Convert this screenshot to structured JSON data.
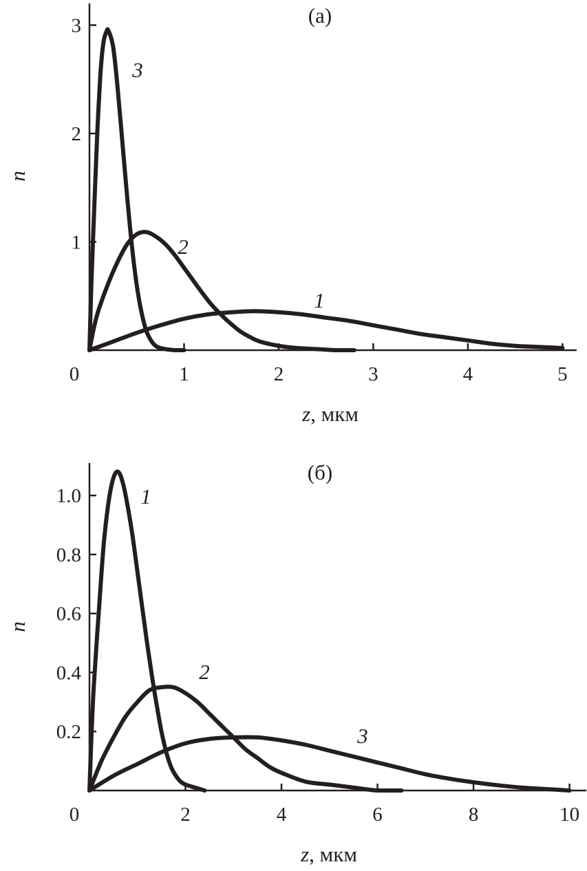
{
  "chart_data": [
    {
      "type": "line",
      "panel_label": "(a)",
      "xlabel_var": "z",
      "xlabel_unit": ", мкм",
      "ylabel": "n",
      "xlim": [
        0,
        5.15
      ],
      "ylim": [
        0,
        3.2
      ],
      "x_ticks": [
        0,
        1,
        2,
        3,
        4,
        5
      ],
      "x_tick_labels": [
        "0",
        "1",
        "2",
        "3",
        "4",
        "5"
      ],
      "y_ticks": [
        1,
        2,
        3
      ],
      "y_tick_labels": [
        "1",
        "2",
        "3"
      ],
      "grid": false,
      "series": [
        {
          "name": "1",
          "x": [
            0,
            0.25,
            0.5,
            0.75,
            1.0,
            1.25,
            1.5,
            1.75,
            2.0,
            2.25,
            2.5,
            2.75,
            3.0,
            3.25,
            3.5,
            3.75,
            4.0,
            4.25,
            4.5,
            4.75,
            5.0
          ],
          "values": [
            0.0,
            0.08,
            0.16,
            0.23,
            0.29,
            0.33,
            0.35,
            0.36,
            0.35,
            0.33,
            0.3,
            0.27,
            0.23,
            0.19,
            0.15,
            0.12,
            0.09,
            0.06,
            0.04,
            0.03,
            0.02
          ]
        },
        {
          "name": "2",
          "x": [
            0,
            0.05,
            0.1,
            0.2,
            0.3,
            0.4,
            0.5,
            0.6,
            0.7,
            0.8,
            0.9,
            1.0,
            1.1,
            1.2,
            1.3,
            1.4,
            1.5,
            1.6,
            1.7,
            1.8,
            2.0,
            2.2,
            2.4,
            2.6,
            2.8
          ],
          "values": [
            0.0,
            0.22,
            0.38,
            0.62,
            0.82,
            0.98,
            1.07,
            1.09,
            1.05,
            0.98,
            0.88,
            0.76,
            0.64,
            0.52,
            0.41,
            0.32,
            0.24,
            0.17,
            0.12,
            0.08,
            0.04,
            0.02,
            0.01,
            0.0,
            0.0
          ]
        },
        {
          "name": "3",
          "x": [
            0,
            0.02,
            0.05,
            0.08,
            0.1,
            0.12,
            0.15,
            0.18,
            0.2,
            0.25,
            0.3,
            0.35,
            0.4,
            0.45,
            0.5,
            0.55,
            0.6,
            0.65,
            0.7,
            0.75,
            0.8,
            0.9,
            1.0
          ],
          "values": [
            0.0,
            0.6,
            1.3,
            1.95,
            2.3,
            2.6,
            2.85,
            2.94,
            2.95,
            2.8,
            2.4,
            1.9,
            1.4,
            0.95,
            0.6,
            0.35,
            0.18,
            0.09,
            0.04,
            0.02,
            0.01,
            0.0,
            0.0
          ]
        }
      ]
    },
    {
      "type": "line",
      "panel_label": "(б)",
      "xlabel_var": "z",
      "xlabel_unit": ", мкм",
      "ylabel": "n",
      "xlim": [
        0,
        10.35
      ],
      "ylim": [
        0,
        1.11
      ],
      "x_ticks": [
        0,
        2,
        4,
        6,
        8,
        10
      ],
      "x_tick_labels": [
        "0",
        "2",
        "4",
        "6",
        "8",
        "10"
      ],
      "y_ticks": [
        0.2,
        0.4,
        0.6,
        0.8,
        1.0
      ],
      "y_tick_labels": [
        "0.2",
        "0.4",
        "0.6",
        "0.8",
        "1.0"
      ],
      "grid": false,
      "series": [
        {
          "name": "1",
          "x": [
            0,
            0.05,
            0.1,
            0.2,
            0.3,
            0.4,
            0.5,
            0.6,
            0.7,
            0.8,
            0.9,
            1.0,
            1.1,
            1.2,
            1.3,
            1.4,
            1.5,
            1.6,
            1.7,
            1.8,
            1.9,
            2.0,
            2.2,
            2.4
          ],
          "values": [
            0.0,
            0.22,
            0.38,
            0.62,
            0.84,
            0.98,
            1.06,
            1.08,
            1.04,
            0.96,
            0.86,
            0.74,
            0.62,
            0.5,
            0.39,
            0.29,
            0.2,
            0.13,
            0.08,
            0.05,
            0.03,
            0.02,
            0.01,
            0.0
          ]
        },
        {
          "name": "2",
          "x": [
            0,
            0.25,
            0.5,
            0.75,
            1.0,
            1.25,
            1.5,
            1.75,
            2.0,
            2.25,
            2.5,
            2.75,
            3.0,
            3.25,
            3.5,
            3.75,
            4.0,
            4.5,
            5.0,
            5.5,
            6.0,
            6.5
          ],
          "values": [
            0.0,
            0.1,
            0.18,
            0.25,
            0.3,
            0.34,
            0.35,
            0.35,
            0.33,
            0.3,
            0.26,
            0.22,
            0.18,
            0.14,
            0.11,
            0.08,
            0.06,
            0.03,
            0.02,
            0.01,
            0.0,
            0.0
          ]
        },
        {
          "name": "3",
          "x": [
            0,
            0.5,
            1.0,
            1.5,
            2.0,
            2.5,
            3.0,
            3.5,
            4.0,
            4.5,
            5.0,
            5.5,
            6.0,
            6.5,
            7.0,
            7.5,
            8.0,
            8.5,
            9.0,
            9.5,
            10.0
          ],
          "values": [
            0.0,
            0.05,
            0.09,
            0.13,
            0.16,
            0.175,
            0.18,
            0.18,
            0.17,
            0.155,
            0.135,
            0.115,
            0.095,
            0.075,
            0.055,
            0.04,
            0.028,
            0.018,
            0.01,
            0.005,
            0.0
          ]
        }
      ]
    }
  ]
}
